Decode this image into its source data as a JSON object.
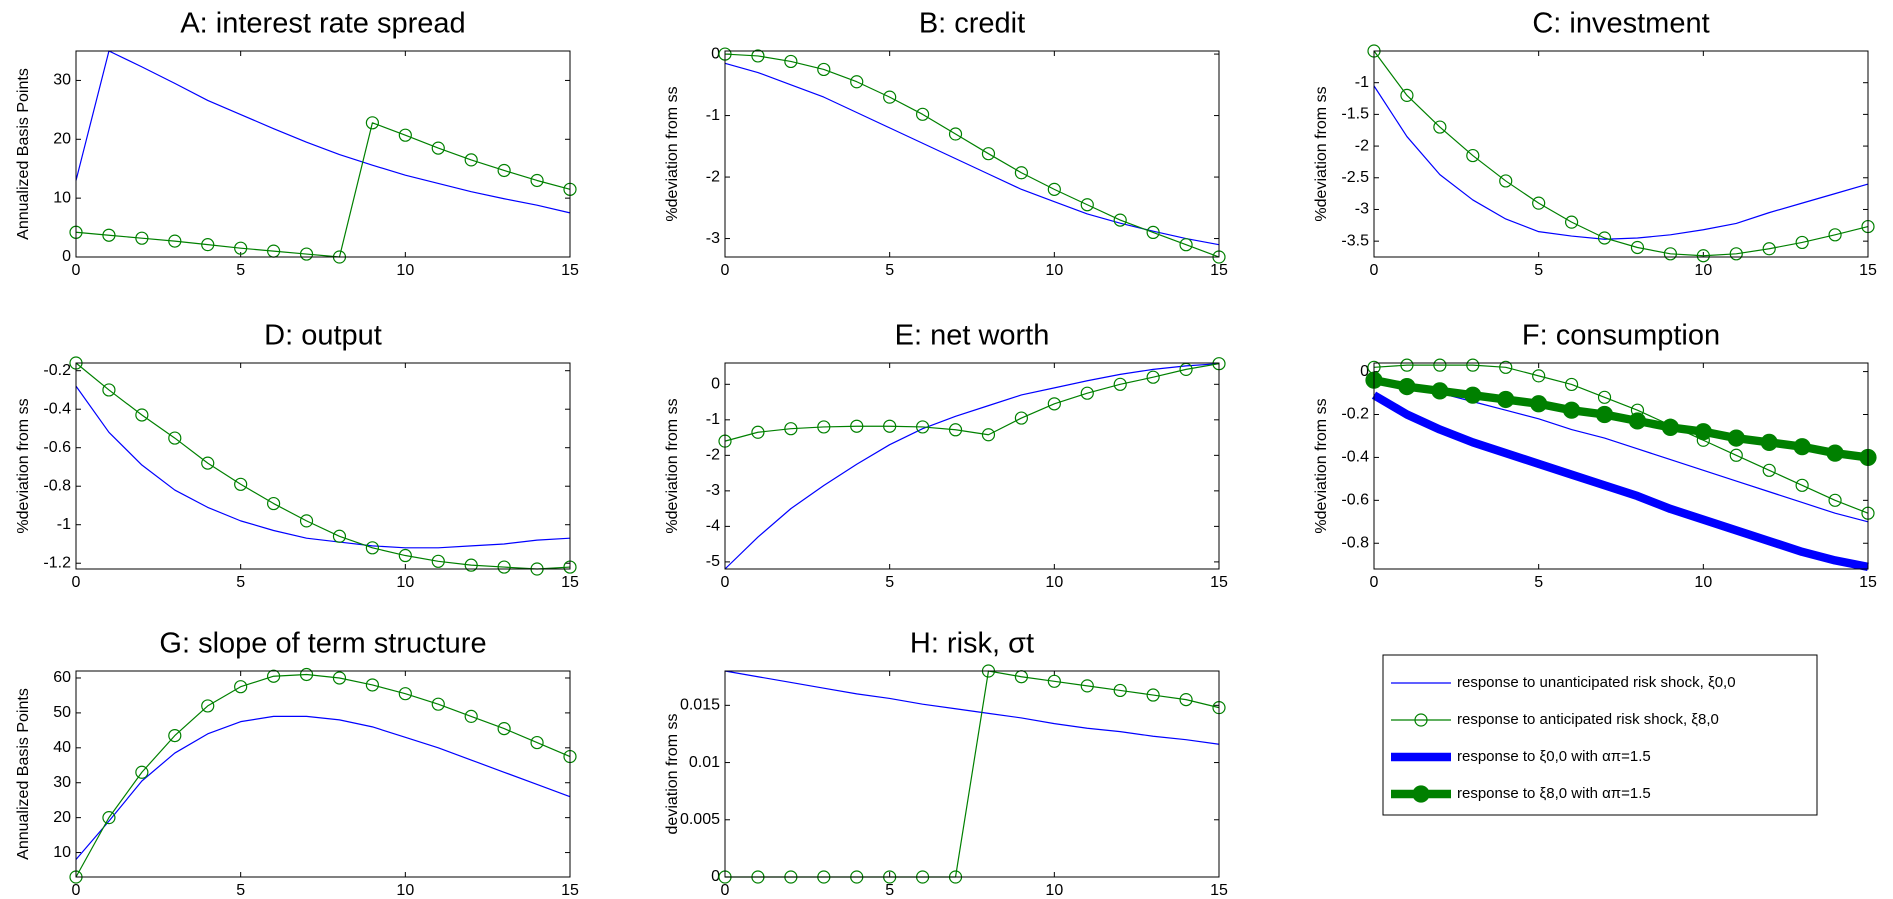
{
  "chart_data": [
    {
      "type": "line",
      "title": "A: interest rate spread",
      "ylabel": "Annualized Basis Points",
      "x": [
        0,
        1,
        2,
        3,
        4,
        5,
        6,
        7,
        8,
        9,
        10,
        11,
        12,
        13,
        14,
        15
      ],
      "xlim": [
        0,
        15
      ],
      "xticks": [
        0,
        5,
        10,
        15
      ],
      "ylim": [
        0,
        35
      ],
      "yticks": [
        0,
        10,
        20,
        30
      ],
      "series": [
        {
          "color": "#0000ff",
          "linewidth": 1,
          "marker": "none",
          "values": [
            13,
            35,
            32.3,
            29.5,
            26.6,
            24.2,
            21.8,
            19.5,
            17.4,
            15.6,
            13.9,
            12.5,
            11.1,
            9.9,
            8.8,
            7.5
          ]
        },
        {
          "color": "#008000",
          "linewidth": 1,
          "marker": "open",
          "values": [
            4.2,
            3.7,
            3.2,
            2.7,
            2.1,
            1.5,
            1.0,
            0.5,
            0,
            22.8,
            20.7,
            18.5,
            16.5,
            14.7,
            13.0,
            11.5
          ]
        }
      ]
    },
    {
      "type": "line",
      "title": "B: credit",
      "ylabel": "%deviation from ss",
      "x": [
        0,
        1,
        2,
        3,
        4,
        5,
        6,
        7,
        8,
        9,
        10,
        11,
        12,
        13,
        14,
        15
      ],
      "xlim": [
        0,
        15
      ],
      "xticks": [
        0,
        5,
        10,
        15
      ],
      "ylim": [
        -3.3,
        0.05
      ],
      "yticks": [
        -3,
        -2,
        -1,
        0
      ],
      "series": [
        {
          "color": "#0000ff",
          "linewidth": 1,
          "marker": "none",
          "values": [
            -0.15,
            -0.3,
            -0.5,
            -0.7,
            -0.95,
            -1.2,
            -1.45,
            -1.7,
            -1.95,
            -2.2,
            -2.4,
            -2.6,
            -2.75,
            -2.88,
            -3.0,
            -3.1
          ]
        },
        {
          "color": "#008000",
          "linewidth": 1,
          "marker": "open",
          "values": [
            0,
            -0.03,
            -0.12,
            -0.25,
            -0.45,
            -0.7,
            -0.98,
            -1.3,
            -1.62,
            -1.93,
            -2.2,
            -2.45,
            -2.7,
            -2.9,
            -3.1,
            -3.3
          ]
        }
      ]
    },
    {
      "type": "line",
      "title": "C: investment",
      "ylabel": "%deviation from ss",
      "x": [
        0,
        1,
        2,
        3,
        4,
        5,
        6,
        7,
        8,
        9,
        10,
        11,
        12,
        13,
        14,
        15
      ],
      "xlim": [
        0,
        15
      ],
      "xticks": [
        0,
        5,
        10,
        15
      ],
      "ylim": [
        -3.75,
        -0.5
      ],
      "yticks": [
        -3.5,
        -3,
        -2.5,
        -2,
        -1.5,
        -1
      ],
      "series": [
        {
          "color": "#0000ff",
          "linewidth": 1,
          "marker": "none",
          "values": [
            -1.05,
            -1.85,
            -2.45,
            -2.85,
            -3.15,
            -3.35,
            -3.42,
            -3.47,
            -3.45,
            -3.4,
            -3.32,
            -3.22,
            -3.05,
            -2.9,
            -2.75,
            -2.6
          ]
        },
        {
          "color": "#008000",
          "linewidth": 1,
          "marker": "open",
          "values": [
            -0.5,
            -1.2,
            -1.7,
            -2.15,
            -2.55,
            -2.9,
            -3.2,
            -3.45,
            -3.6,
            -3.7,
            -3.73,
            -3.7,
            -3.62,
            -3.52,
            -3.4,
            -3.27
          ]
        }
      ]
    },
    {
      "type": "line",
      "title": "D: output",
      "ylabel": "%deviation from ss",
      "x": [
        0,
        1,
        2,
        3,
        4,
        5,
        6,
        7,
        8,
        9,
        10,
        11,
        12,
        13,
        14,
        15
      ],
      "xlim": [
        0,
        15
      ],
      "xticks": [
        0,
        5,
        10,
        15
      ],
      "ylim": [
        -1.23,
        -0.16
      ],
      "yticks": [
        -1.2,
        -1,
        -0.8,
        -0.6,
        -0.4,
        -0.2
      ],
      "series": [
        {
          "color": "#0000ff",
          "linewidth": 1,
          "marker": "none",
          "values": [
            -0.28,
            -0.52,
            -0.69,
            -0.82,
            -0.91,
            -0.98,
            -1.03,
            -1.07,
            -1.09,
            -1.11,
            -1.12,
            -1.12,
            -1.11,
            -1.1,
            -1.08,
            -1.07
          ]
        },
        {
          "color": "#008000",
          "linewidth": 1,
          "marker": "open",
          "values": [
            -0.16,
            -0.3,
            -0.43,
            -0.55,
            -0.68,
            -0.79,
            -0.89,
            -0.98,
            -1.06,
            -1.12,
            -1.16,
            -1.19,
            -1.21,
            -1.22,
            -1.23,
            -1.22
          ]
        }
      ]
    },
    {
      "type": "line",
      "title": "E: net worth",
      "ylabel": "%deviation from ss",
      "x": [
        0,
        1,
        2,
        3,
        4,
        5,
        6,
        7,
        8,
        9,
        10,
        11,
        12,
        13,
        14,
        15
      ],
      "xlim": [
        0,
        15
      ],
      "xticks": [
        0,
        5,
        10,
        15
      ],
      "ylim": [
        -5.2,
        0.6
      ],
      "yticks": [
        -5,
        -4,
        -3,
        -2,
        -1,
        0
      ],
      "series": [
        {
          "color": "#0000ff",
          "linewidth": 1,
          "marker": "none",
          "values": [
            -5.2,
            -4.3,
            -3.5,
            -2.85,
            -2.25,
            -1.7,
            -1.25,
            -0.9,
            -0.6,
            -0.3,
            -0.1,
            0.1,
            0.28,
            0.42,
            0.52,
            0.58
          ]
        },
        {
          "color": "#008000",
          "linewidth": 1,
          "marker": "open",
          "values": [
            -1.6,
            -1.35,
            -1.25,
            -1.2,
            -1.18,
            -1.18,
            -1.2,
            -1.28,
            -1.42,
            -0.95,
            -0.55,
            -0.25,
            0,
            0.2,
            0.42,
            0.58
          ]
        }
      ]
    },
    {
      "type": "line",
      "title": "F: consumption",
      "ylabel": "%deviation from ss",
      "x": [
        0,
        1,
        2,
        3,
        4,
        5,
        6,
        7,
        8,
        9,
        10,
        11,
        12,
        13,
        14,
        15
      ],
      "xlim": [
        0,
        15
      ],
      "xticks": [
        0,
        5,
        10,
        15
      ],
      "ylim": [
        -0.92,
        0.04
      ],
      "yticks": [
        -0.8,
        -0.6,
        -0.4,
        -0.2,
        0
      ],
      "series": [
        {
          "name": "response to unanticipated risk shock, ξ0,0",
          "color": "#0000ff",
          "linewidth": 1,
          "marker": "none",
          "values": [
            -0.03,
            -0.07,
            -0.1,
            -0.14,
            -0.18,
            -0.22,
            -0.27,
            -0.31,
            -0.36,
            -0.41,
            -0.46,
            -0.51,
            -0.56,
            -0.61,
            -0.66,
            -0.7
          ]
        },
        {
          "name": "response to anticipated risk shock, ξ8,0",
          "color": "#008000",
          "linewidth": 1,
          "marker": "open",
          "values": [
            0.02,
            0.03,
            0.03,
            0.03,
            0.02,
            -0.02,
            -0.06,
            -0.12,
            -0.18,
            -0.25,
            -0.32,
            -0.39,
            -0.46,
            -0.53,
            -0.6,
            -0.66
          ]
        },
        {
          "name": "response to  ξ0,0 with απ=1.5",
          "color": "#0000ff",
          "linewidth": 7,
          "marker": "none",
          "values": [
            -0.11,
            -0.2,
            -0.27,
            -0.33,
            -0.38,
            -0.43,
            -0.48,
            -0.53,
            -0.58,
            -0.64,
            -0.69,
            -0.74,
            -0.79,
            -0.84,
            -0.88,
            -0.91
          ]
        },
        {
          "name": "response to  ξ8,0 with απ=1.5",
          "color": "#008000",
          "linewidth": 7,
          "marker": "filled",
          "values": [
            -0.04,
            -0.07,
            -0.09,
            -0.11,
            -0.13,
            -0.15,
            -0.18,
            -0.2,
            -0.23,
            -0.26,
            -0.28,
            -0.31,
            -0.33,
            -0.35,
            -0.38,
            -0.4
          ]
        }
      ]
    },
    {
      "type": "line",
      "title": "G: slope of term structure",
      "ylabel": "Annualized Basis Points",
      "x": [
        0,
        1,
        2,
        3,
        4,
        5,
        6,
        7,
        8,
        9,
        10,
        11,
        12,
        13,
        14,
        15
      ],
      "xlim": [
        0,
        15
      ],
      "xticks": [
        0,
        5,
        10,
        15
      ],
      "ylim": [
        3,
        62
      ],
      "yticks": [
        10,
        20,
        30,
        40,
        50,
        60
      ],
      "series": [
        {
          "color": "#0000ff",
          "linewidth": 1,
          "marker": "none",
          "values": [
            8,
            19,
            30.5,
            38.5,
            44,
            47.5,
            49,
            49,
            48,
            46,
            43,
            40,
            36.5,
            33,
            29.5,
            26
          ]
        },
        {
          "color": "#008000",
          "linewidth": 1,
          "marker": "open",
          "values": [
            3,
            20,
            33,
            43.5,
            52,
            57.5,
            60.5,
            61,
            60,
            58,
            55.5,
            52.5,
            49,
            45.5,
            41.5,
            37.5
          ]
        }
      ]
    },
    {
      "type": "line",
      "title": "H: risk, σt",
      "ylabel": "deviation from ss",
      "x": [
        0,
        1,
        2,
        3,
        4,
        5,
        6,
        7,
        8,
        9,
        10,
        11,
        12,
        13,
        14,
        15
      ],
      "xlim": [
        0,
        15
      ],
      "xticks": [
        0,
        5,
        10,
        15
      ],
      "ylim": [
        0,
        0.018
      ],
      "yticks": [
        0,
        0.005,
        0.01,
        0.015
      ],
      "series": [
        {
          "color": "#0000ff",
          "linewidth": 1,
          "marker": "none",
          "values": [
            0.018,
            0.0175,
            0.017,
            0.0165,
            0.016,
            0.0156,
            0.0151,
            0.0147,
            0.0143,
            0.0139,
            0.0134,
            0.013,
            0.0127,
            0.0123,
            0.012,
            0.0116
          ]
        },
        {
          "color": "#008000",
          "linewidth": 1,
          "marker": "open",
          "values": [
            0,
            0,
            0,
            0,
            0,
            0,
            0,
            0,
            0.018,
            0.0175,
            0.0171,
            0.0167,
            0.0163,
            0.0159,
            0.0155,
            0.0148
          ]
        }
      ]
    }
  ]
}
